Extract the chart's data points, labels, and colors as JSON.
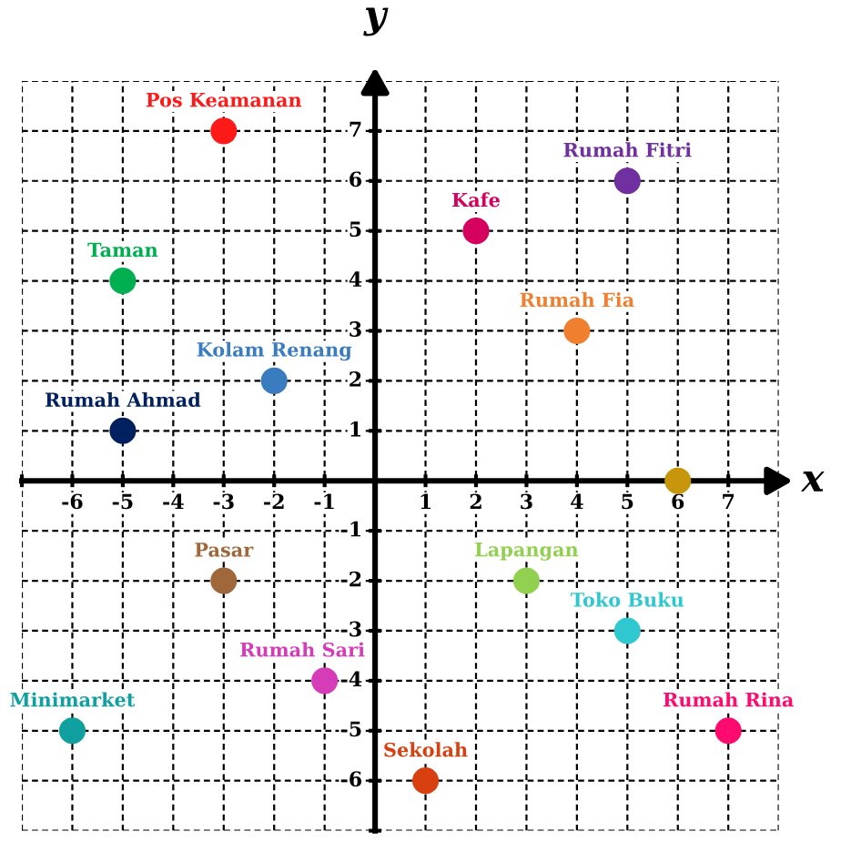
{
  "chart_data": {
    "type": "scatter",
    "xlabel": "x",
    "ylabel": "y",
    "xlim": [
      -7,
      8
    ],
    "ylim": [
      -7,
      8
    ],
    "xticks": [
      {
        "value": -7,
        "label": null
      },
      -6,
      -5,
      -4,
      -3,
      -2,
      -1,
      {
        "value": 0,
        "label": null
      },
      1,
      2,
      3,
      4,
      5,
      6,
      7,
      {
        "value": 8,
        "label": null
      }
    ],
    "yticks": [
      {
        "value": -7,
        "label": null
      },
      -6,
      -5,
      -4,
      -3,
      -2,
      -1,
      {
        "value": 0,
        "label": null
      },
      1,
      2,
      3,
      4,
      5,
      6,
      7,
      {
        "value": 8,
        "label": null
      }
    ],
    "grid": true,
    "legend": false,
    "marker": "circle",
    "series": [
      {
        "name": "Pos Keamanan",
        "color": "#ff1a1a",
        "x": [
          -3
        ],
        "values": [
          7
        ]
      },
      {
        "name": "Rumah Fitri",
        "color": "#7030a0",
        "x": [
          5
        ],
        "values": [
          6
        ]
      },
      {
        "name": "Kafe",
        "color": "#d6005e",
        "x": [
          2
        ],
        "values": [
          5
        ]
      },
      {
        "name": "Taman",
        "color": "#00b050",
        "x": [
          -5
        ],
        "values": [
          4
        ]
      },
      {
        "name": "Rumah Fia",
        "color": "#f08030",
        "x": [
          4
        ],
        "values": [
          3
        ]
      },
      {
        "name": "Kolam Renang",
        "color": "#3a7cc0",
        "x": [
          -2
        ],
        "values": [
          2
        ]
      },
      {
        "name": "Rumah Ahmad",
        "color": "#002060",
        "x": [
          -5
        ],
        "values": [
          1
        ]
      },
      {
        "color": "#c8960a",
        "x": [
          6
        ],
        "values": [
          0
        ]
      },
      {
        "name": "Pasar",
        "color": "#a0683a",
        "x": [
          -3
        ],
        "values": [
          -2
        ]
      },
      {
        "name": "Lapangan",
        "color": "#92d050",
        "x": [
          3
        ],
        "values": [
          -2
        ]
      },
      {
        "name": "Toko Buku",
        "color": "#30c8d0",
        "x": [
          5
        ],
        "values": [
          -3
        ]
      },
      {
        "name": "Rumah Sari",
        "color": "#d63cb8",
        "x": [
          -1
        ],
        "values": [
          -4
        ]
      },
      {
        "name": "Minimarket",
        "color": "#10a0a0",
        "x": [
          -6
        ],
        "values": [
          -5
        ]
      },
      {
        "name": "Rumah Rina",
        "color": "#ff0a6e",
        "x": [
          7
        ],
        "values": [
          -5
        ]
      },
      {
        "name": "Sekolah",
        "color": "#d84010",
        "x": [
          1
        ],
        "values": [
          -6
        ]
      }
    ]
  }
}
